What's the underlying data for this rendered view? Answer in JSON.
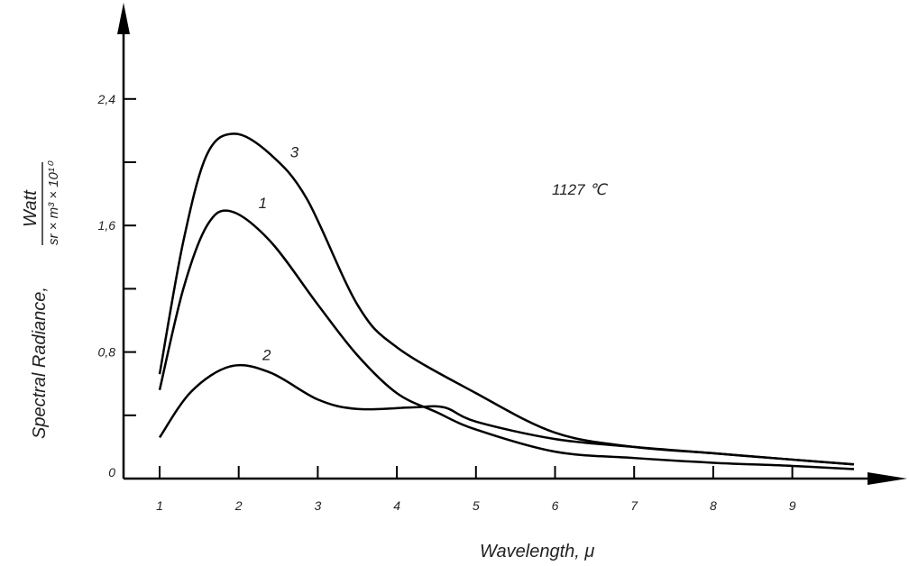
{
  "chart_data": {
    "type": "line",
    "title": "",
    "annotation": "1127 ℃",
    "xlabel": "Wavelength, μ",
    "ylabel": "Spectral Radiance,",
    "ylabel_unit": {
      "numerator": "Watt",
      "denominator": "sr × m³ × 10¹⁰"
    },
    "xlim": [
      0.55,
      10.3
    ],
    "ylim": [
      0,
      2.95
    ],
    "x_ticks": [
      1,
      2,
      3,
      4,
      5,
      6,
      7,
      8,
      9
    ],
    "x_tick_labels": [
      "1",
      "2",
      "3",
      "4",
      "5",
      "6",
      "7",
      "8",
      "9"
    ],
    "y_ticks": [
      0,
      0.4,
      0.8,
      1.2,
      1.6,
      2.0,
      2.4
    ],
    "y_tick_labels": [
      {
        "value": 0,
        "label": "0"
      },
      {
        "value": 0.8,
        "label": "0,8"
      },
      {
        "value": 1.6,
        "label": "1,6"
      },
      {
        "value": 2.4,
        "label": "2,4"
      }
    ],
    "grid": false,
    "series": [
      {
        "name": "1",
        "points": [
          [
            1,
            0.56
          ],
          [
            1.3,
            1.2
          ],
          [
            1.6,
            1.6
          ],
          [
            1.9,
            1.69
          ],
          [
            2.4,
            1.5
          ],
          [
            3,
            1.1
          ],
          [
            3.5,
            0.78
          ],
          [
            4,
            0.54
          ],
          [
            4.5,
            0.42
          ],
          [
            5,
            0.31
          ],
          [
            6,
            0.17
          ],
          [
            7,
            0.13
          ],
          [
            8,
            0.1
          ],
          [
            9,
            0.08
          ],
          [
            9.78,
            0.06
          ]
        ],
        "label_at": [
          2.25,
          1.71
        ]
      },
      {
        "name": "2",
        "points": [
          [
            1,
            0.26
          ],
          [
            1.4,
            0.55
          ],
          [
            1.9,
            0.71
          ],
          [
            2.4,
            0.67
          ],
          [
            3,
            0.5
          ],
          [
            3.5,
            0.44
          ],
          [
            4.2,
            0.45
          ],
          [
            4.6,
            0.45
          ],
          [
            5,
            0.36
          ],
          [
            6,
            0.25
          ],
          [
            7,
            0.2
          ],
          [
            8,
            0.16
          ],
          [
            9,
            0.12
          ],
          [
            9.78,
            0.09
          ]
        ],
        "label_at": [
          2.3,
          0.75
        ]
      },
      {
        "name": "3",
        "points": [
          [
            1,
            0.66
          ],
          [
            1.3,
            1.5
          ],
          [
            1.6,
            2.05
          ],
          [
            1.95,
            2.18
          ],
          [
            2.4,
            2.05
          ],
          [
            2.86,
            1.77
          ],
          [
            3.5,
            1.1
          ],
          [
            4,
            0.83
          ],
          [
            5,
            0.54
          ],
          [
            6,
            0.29
          ],
          [
            7,
            0.2
          ],
          [
            8,
            0.16
          ],
          [
            9,
            0.12
          ],
          [
            9.78,
            0.09
          ]
        ],
        "label_at": [
          2.65,
          2.03
        ]
      }
    ]
  }
}
